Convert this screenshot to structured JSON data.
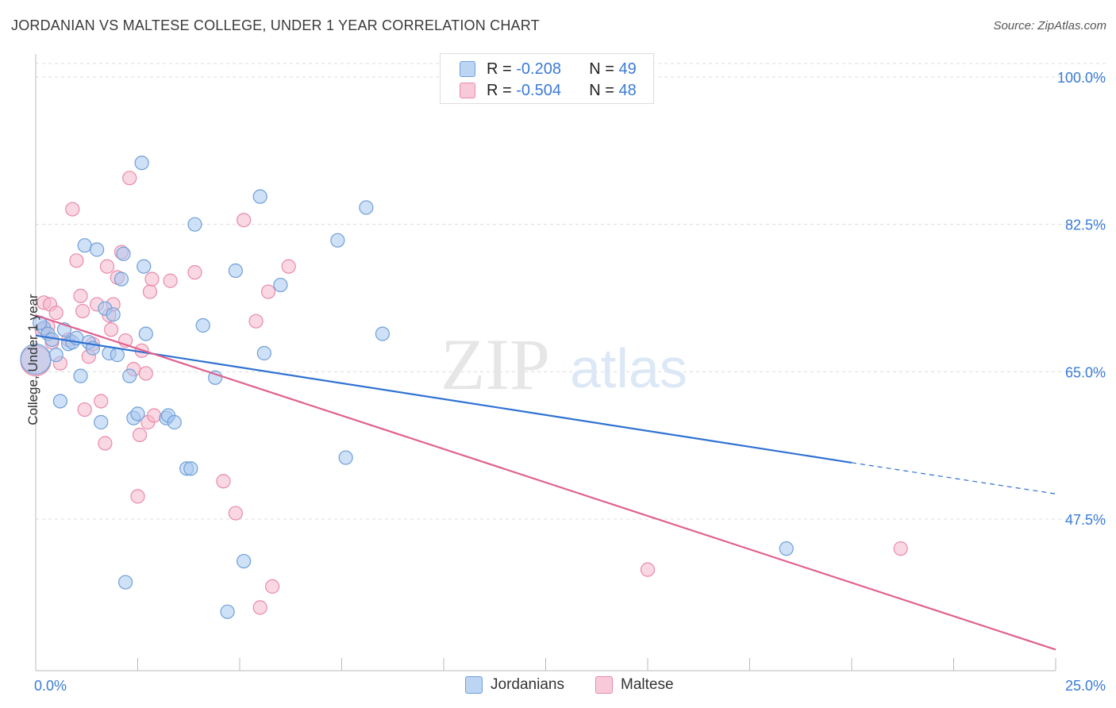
{
  "title": "JORDANIAN VS MALTESE COLLEGE, UNDER 1 YEAR CORRELATION CHART",
  "source": "Source: ZipAtlas.com",
  "watermark": {
    "zip": "ZIP",
    "atlas": "atlas"
  },
  "legend": {
    "r_label": "R =",
    "n_label": "N =",
    "jordanians": {
      "r": "-0.208",
      "n": "49"
    },
    "maltese": {
      "r": "-0.504",
      "n": "48"
    }
  },
  "colors": {
    "jordanians_fill": "#a8c8f0",
    "jordanians_stroke": "#6f9fd8",
    "jordanians_line": "#2f72d2",
    "maltese_fill": "#f6b8cc",
    "maltese_stroke": "#e88aa8",
    "maltese_line": "#e0608f",
    "axis_label": "#3a7bd5"
  },
  "chart_data": {
    "type": "scatter",
    "title": "JORDANIAN VS MALTESE COLLEGE, UNDER 1 YEAR CORRELATION CHART",
    "xlabel": "",
    "ylabel": "College, Under 1 year",
    "xlim": [
      0,
      25
    ],
    "ylim": [
      31,
      102
    ],
    "x_tick_labels": [
      "0.0%",
      "25.0%"
    ],
    "y_ticks": [
      100,
      82.5,
      65,
      47.5
    ],
    "y_tick_labels": [
      "100.0%",
      "82.5%",
      "65.0%",
      "47.5%"
    ],
    "grid": true,
    "legend_position": "top-center",
    "series": [
      {
        "name": "Jordanians",
        "points": [
          [
            0.0,
            66.5
          ],
          [
            0.2,
            70.2
          ],
          [
            0.3,
            69.5
          ],
          [
            0.4,
            68.8
          ],
          [
            0.5,
            67.0
          ],
          [
            0.6,
            61.5
          ],
          [
            0.7,
            70.0
          ],
          [
            0.8,
            68.3
          ],
          [
            0.9,
            68.5
          ],
          [
            1.0,
            69.0
          ],
          [
            1.1,
            64.5
          ],
          [
            1.2,
            80.0
          ],
          [
            1.3,
            68.5
          ],
          [
            1.4,
            67.8
          ],
          [
            1.5,
            79.5
          ],
          [
            1.6,
            59.0
          ],
          [
            1.7,
            72.5
          ],
          [
            1.8,
            67.2
          ],
          [
            1.9,
            71.8
          ],
          [
            2.0,
            67.0
          ],
          [
            2.1,
            76.0
          ],
          [
            2.15,
            79.0
          ],
          [
            2.2,
            40.0
          ],
          [
            2.3,
            64.5
          ],
          [
            2.4,
            59.5
          ],
          [
            2.5,
            60.0
          ],
          [
            2.6,
            89.8
          ],
          [
            2.65,
            77.5
          ],
          [
            2.7,
            69.5
          ],
          [
            3.2,
            59.5
          ],
          [
            3.25,
            59.8
          ],
          [
            3.4,
            59.0
          ],
          [
            3.7,
            53.5
          ],
          [
            3.8,
            53.5
          ],
          [
            3.9,
            82.5
          ],
          [
            4.1,
            70.5
          ],
          [
            4.4,
            64.3
          ],
          [
            4.7,
            36.5
          ],
          [
            4.9,
            77.0
          ],
          [
            5.1,
            42.5
          ],
          [
            5.5,
            85.8
          ],
          [
            5.6,
            67.2
          ],
          [
            6.0,
            75.3
          ],
          [
            7.4,
            80.6
          ],
          [
            7.6,
            54.8
          ],
          [
            8.1,
            84.5
          ],
          [
            8.5,
            69.5
          ],
          [
            18.4,
            44.0
          ],
          [
            0.1,
            70.8
          ]
        ]
      },
      {
        "name": "Maltese",
        "points": [
          [
            0.0,
            66.3
          ],
          [
            0.2,
            73.2
          ],
          [
            0.3,
            70.4
          ],
          [
            0.35,
            73.0
          ],
          [
            0.4,
            68.5
          ],
          [
            0.5,
            72.0
          ],
          [
            0.6,
            66.0
          ],
          [
            0.8,
            68.8
          ],
          [
            0.9,
            84.3
          ],
          [
            1.0,
            78.2
          ],
          [
            1.1,
            74.0
          ],
          [
            1.15,
            72.2
          ],
          [
            1.2,
            60.5
          ],
          [
            1.3,
            66.8
          ],
          [
            1.4,
            68.3
          ],
          [
            1.5,
            73.0
          ],
          [
            1.6,
            61.5
          ],
          [
            1.7,
            56.5
          ],
          [
            1.75,
            77.5
          ],
          [
            1.8,
            71.7
          ],
          [
            1.85,
            70.0
          ],
          [
            1.9,
            73.0
          ],
          [
            2.0,
            76.2
          ],
          [
            2.1,
            79.2
          ],
          [
            2.2,
            68.7
          ],
          [
            2.3,
            88.0
          ],
          [
            2.4,
            65.3
          ],
          [
            2.5,
            50.2
          ],
          [
            2.55,
            57.5
          ],
          [
            2.6,
            67.5
          ],
          [
            2.7,
            64.8
          ],
          [
            2.75,
            59.0
          ],
          [
            2.8,
            74.5
          ],
          [
            2.85,
            76.0
          ],
          [
            2.9,
            59.8
          ],
          [
            3.3,
            75.8
          ],
          [
            3.9,
            76.8
          ],
          [
            4.6,
            52.0
          ],
          [
            4.9,
            48.2
          ],
          [
            5.1,
            83.0
          ],
          [
            5.4,
            71.0
          ],
          [
            5.5,
            37.0
          ],
          [
            5.7,
            74.5
          ],
          [
            5.8,
            39.5
          ],
          [
            6.2,
            77.5
          ],
          [
            15.0,
            41.5
          ],
          [
            21.2,
            44.0
          ],
          [
            0.15,
            70.0
          ]
        ]
      }
    ],
    "trend_lines": [
      {
        "name": "Jordanians",
        "x0": 0.0,
        "y0": 69.3,
        "x1": 20.0,
        "y1": 54.2,
        "dashed_to_x": 25.0,
        "dashed_to_y": 50.5
      },
      {
        "name": "Maltese",
        "x0": 0.0,
        "y0": 71.7,
        "x1": 25.0,
        "y1": 32.0
      }
    ]
  }
}
